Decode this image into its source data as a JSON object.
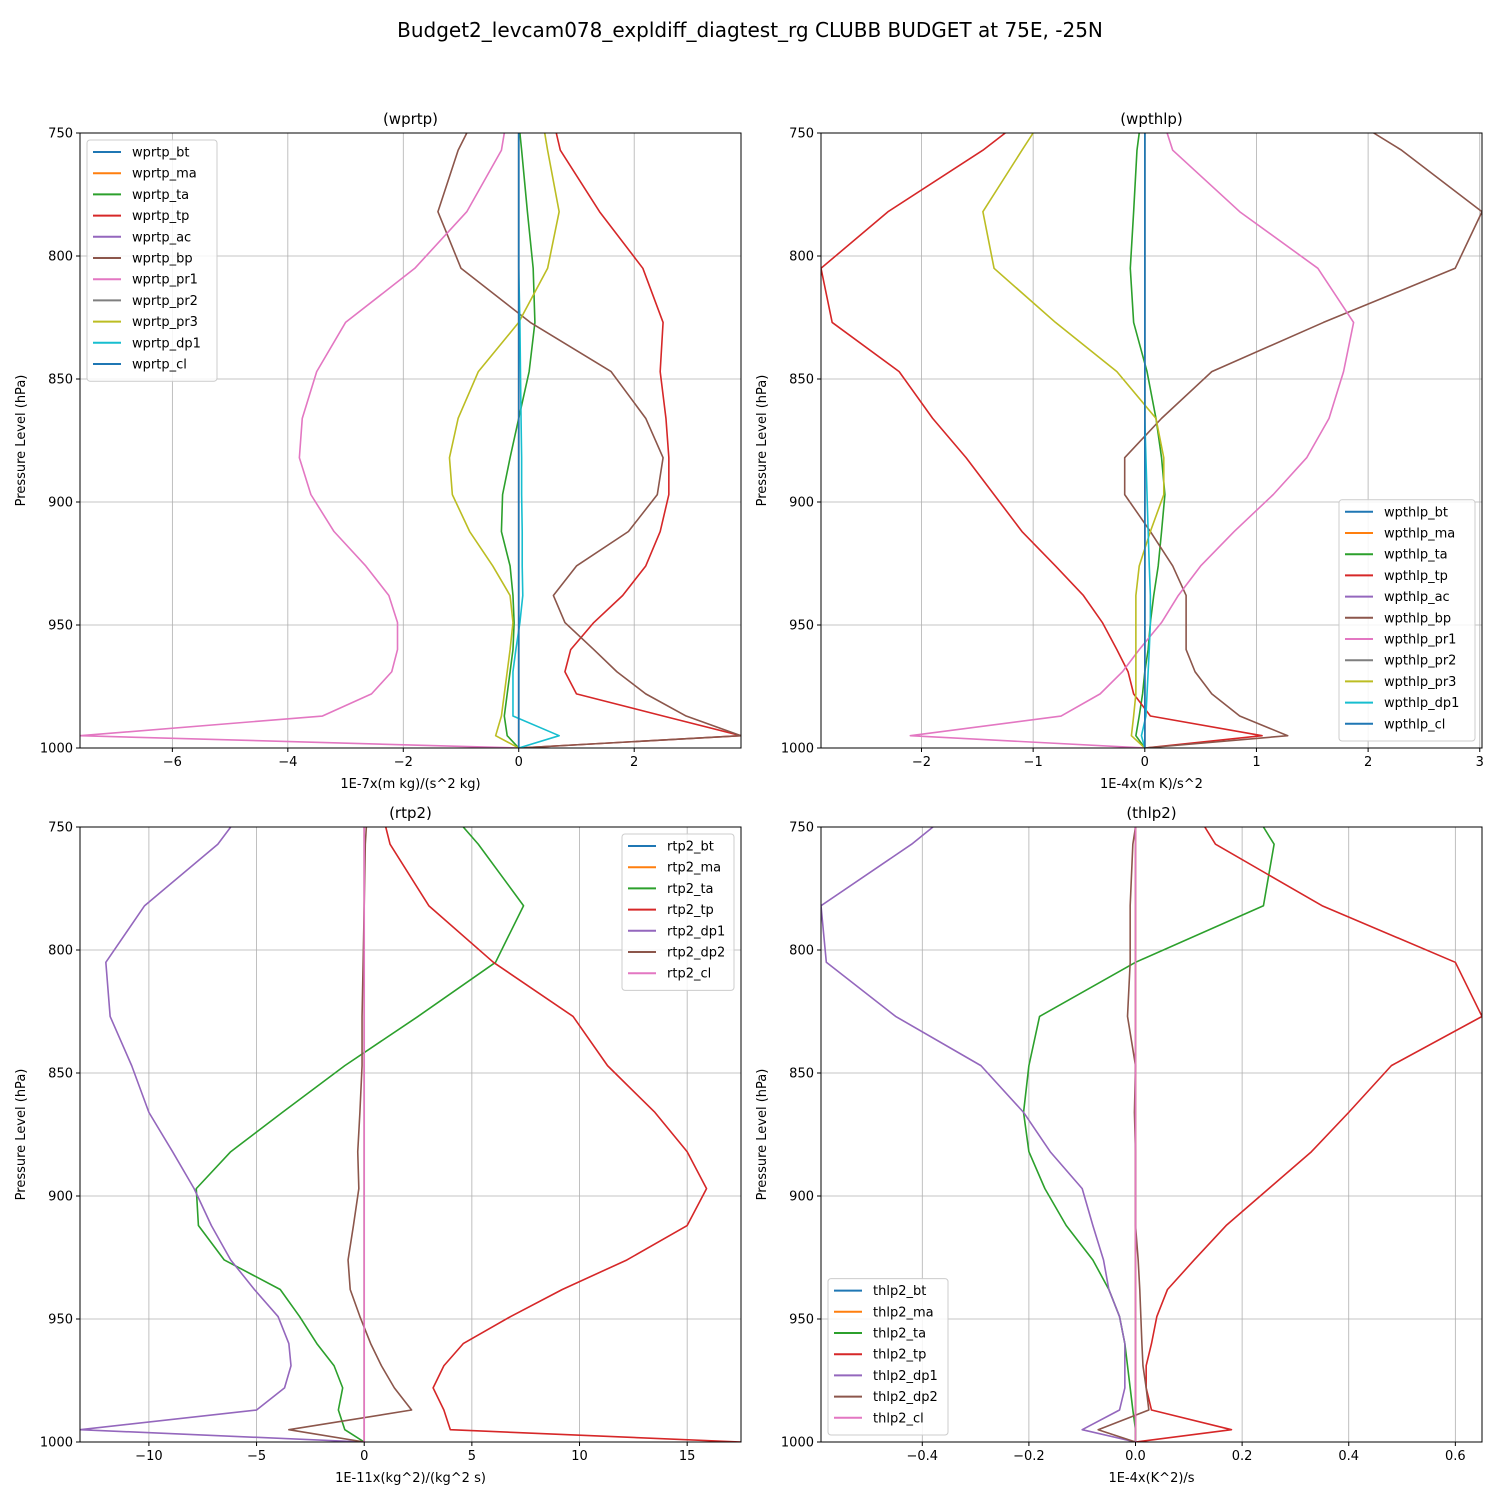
{
  "suptitle": "Budget2_levcam078_expldiff_diagtest_rg CLUBB BUDGET at 75E, -25N",
  "chart_data": [
    {
      "type": "line",
      "title": "(wprtp)",
      "xlabel": "1E-7x(m kg)/(s^2 kg)",
      "ylabel": "Pressure Level (hPa)",
      "xlim": [
        -7.6,
        3.85
      ],
      "ylim": [
        1000,
        750
      ],
      "xticks": [
        -6,
        -4,
        -2,
        0,
        2
      ],
      "yticks": [
        750,
        800,
        850,
        900,
        950,
        1000
      ],
      "grid": true,
      "legend_loc": "upper-left",
      "levels": [
        750,
        757,
        782,
        805,
        827,
        847,
        866,
        882,
        897,
        912,
        926,
        938,
        949,
        960,
        969,
        978,
        987,
        995,
        1000
      ],
      "series": [
        {
          "name": "wprtp_bt",
          "color": "#1f77b4",
          "values": [
            0,
            0,
            0,
            0,
            0,
            0,
            0,
            0,
            0,
            0,
            0,
            0,
            0,
            0,
            0,
            0,
            0,
            0,
            0
          ]
        },
        {
          "name": "wprtp_ma",
          "color": "#ff7f0e",
          "values": [
            0,
            0,
            0,
            0,
            0,
            0,
            0,
            0,
            0,
            0,
            0,
            0,
            0,
            0,
            0,
            0,
            0,
            0,
            0
          ]
        },
        {
          "name": "wprtp_ta",
          "color": "#2ca02c",
          "values": [
            0.02,
            0.05,
            0.15,
            0.25,
            0.28,
            0.18,
            0.0,
            -0.15,
            -0.28,
            -0.3,
            -0.15,
            -0.1,
            -0.08,
            -0.1,
            -0.15,
            -0.2,
            -0.25,
            -0.2,
            0.0
          ]
        },
        {
          "name": "wprtp_tp",
          "color": "#d62728",
          "values": [
            0.65,
            0.72,
            1.4,
            2.15,
            2.5,
            2.45,
            2.55,
            2.6,
            2.6,
            2.45,
            2.2,
            1.8,
            1.3,
            0.9,
            0.8,
            1.0,
            2.5,
            3.85,
            0.0
          ]
        },
        {
          "name": "wprtp_ac",
          "color": "#9467bd",
          "values": [
            0,
            0,
            0,
            0,
            0,
            0,
            0,
            0,
            0,
            0,
            0,
            0,
            0,
            0,
            0,
            0,
            0,
            0,
            0
          ]
        },
        {
          "name": "wprtp_bp",
          "color": "#8c564b",
          "values": [
            -0.9,
            -1.05,
            -1.4,
            -1.0,
            0.2,
            1.6,
            2.2,
            2.5,
            2.4,
            1.9,
            1.0,
            0.6,
            0.8,
            1.3,
            1.7,
            2.2,
            2.9,
            3.85,
            0.0
          ]
        },
        {
          "name": "wprtp_pr1",
          "color": "#e377c2",
          "values": [
            -0.25,
            -0.3,
            -0.9,
            -1.8,
            -3.0,
            -3.5,
            -3.75,
            -3.8,
            -3.6,
            -3.2,
            -2.65,
            -2.25,
            -2.1,
            -2.1,
            -2.2,
            -2.55,
            -3.4,
            -7.6,
            0.0
          ]
        },
        {
          "name": "wprtp_pr2",
          "color": "#7f7f7f",
          "values": [
            0,
            0,
            0,
            0,
            0,
            0,
            0,
            0,
            0,
            0,
            0,
            0,
            0,
            0,
            0,
            0,
            0,
            0,
            0
          ]
        },
        {
          "name": "wprtp_pr3",
          "color": "#bcbd22",
          "values": [
            0.45,
            0.5,
            0.7,
            0.5,
            0.0,
            -0.7,
            -1.05,
            -1.2,
            -1.15,
            -0.85,
            -0.45,
            -0.15,
            -0.1,
            -0.15,
            -0.2,
            -0.25,
            -0.3,
            -0.4,
            0.0
          ]
        },
        {
          "name": "wprtp_dp1",
          "color": "#17becf",
          "values": [
            0,
            0,
            0,
            0,
            0.02,
            0.03,
            0.04,
            0.05,
            0.05,
            0.06,
            0.06,
            0.07,
            0.02,
            -0.05,
            -0.1,
            -0.1,
            -0.1,
            0.7,
            0.0
          ]
        },
        {
          "name": "wprtp_cl",
          "color": "#1f77b4",
          "values": [
            0,
            0,
            0,
            0,
            0,
            0,
            0,
            0,
            0,
            0,
            0,
            0,
            0,
            0,
            0,
            0,
            0,
            0,
            0
          ]
        }
      ]
    },
    {
      "type": "line",
      "title": "(wpthlp)",
      "xlabel": "1E-4x(m K)/s^2",
      "ylabel": "Pressure Level (hPa)",
      "xlim": [
        -2.9,
        3.02
      ],
      "ylim": [
        1000,
        750
      ],
      "xticks": [
        -2,
        -1,
        0,
        1,
        2,
        3
      ],
      "yticks": [
        750,
        800,
        850,
        900,
        950,
        1000
      ],
      "grid": true,
      "legend_loc": "lower-right",
      "levels": [
        750,
        757,
        782,
        805,
        827,
        847,
        866,
        882,
        897,
        912,
        926,
        938,
        949,
        960,
        969,
        978,
        987,
        995,
        1000
      ],
      "series": [
        {
          "name": "wpthlp_bt",
          "color": "#1f77b4",
          "values": [
            0,
            0,
            0,
            0,
            0,
            0,
            0,
            0,
            0,
            0,
            0,
            0,
            0,
            0,
            0,
            0,
            0,
            0,
            0
          ]
        },
        {
          "name": "wpthlp_ma",
          "color": "#ff7f0e",
          "values": [
            0,
            0,
            0,
            0,
            0,
            0,
            0,
            0,
            0,
            0,
            0,
            0,
            0,
            0,
            0,
            0,
            0,
            0,
            0
          ]
        },
        {
          "name": "wpthlp_ta",
          "color": "#2ca02c",
          "values": [
            -0.05,
            -0.07,
            -0.1,
            -0.13,
            -0.1,
            0.02,
            0.1,
            0.15,
            0.18,
            0.15,
            0.12,
            0.08,
            0.05,
            0.03,
            0.0,
            -0.02,
            -0.05,
            -0.08,
            0.0
          ]
        },
        {
          "name": "wpthlp_tp",
          "color": "#d62728",
          "values": [
            -1.25,
            -1.45,
            -2.3,
            -2.9,
            -2.8,
            -2.2,
            -1.9,
            -1.6,
            -1.35,
            -1.1,
            -0.8,
            -0.55,
            -0.38,
            -0.25,
            -0.15,
            -0.1,
            0.05,
            1.05,
            0.0
          ]
        },
        {
          "name": "wpthlp_ac",
          "color": "#9467bd",
          "values": [
            0,
            0,
            0,
            0,
            0,
            0,
            0,
            0,
            0,
            0,
            0,
            0,
            0,
            0,
            0,
            0,
            0,
            0,
            0
          ]
        },
        {
          "name": "wpthlp_bp",
          "color": "#8c564b",
          "values": [
            2.05,
            2.3,
            3.02,
            2.78,
            1.6,
            0.6,
            0.15,
            -0.18,
            -0.18,
            0.05,
            0.25,
            0.37,
            0.37,
            0.37,
            0.45,
            0.6,
            0.85,
            1.28,
            0.0
          ]
        },
        {
          "name": "wpthlp_pr1",
          "color": "#e377c2",
          "values": [
            0.2,
            0.25,
            0.85,
            1.55,
            1.87,
            1.78,
            1.65,
            1.45,
            1.15,
            0.8,
            0.5,
            0.3,
            0.15,
            -0.05,
            -0.2,
            -0.4,
            -0.75,
            -2.1,
            0.0
          ]
        },
        {
          "name": "wpthlp_pr2",
          "color": "#7f7f7f",
          "values": [
            0,
            0,
            0,
            0,
            0,
            0,
            0,
            0,
            0,
            0,
            0,
            0,
            0,
            0,
            0,
            0,
            0,
            0,
            0
          ]
        },
        {
          "name": "wpthlp_pr3",
          "color": "#bcbd22",
          "values": [
            -1.0,
            -1.1,
            -1.45,
            -1.35,
            -0.8,
            -0.25,
            0.1,
            0.17,
            0.17,
            0.05,
            -0.05,
            -0.08,
            -0.08,
            -0.08,
            -0.08,
            -0.08,
            -0.1,
            -0.12,
            0.0
          ]
        },
        {
          "name": "wpthlp_dp1",
          "color": "#17becf",
          "values": [
            0,
            0,
            0,
            0,
            0,
            0,
            0,
            0.01,
            0.02,
            0.03,
            0.04,
            0.05,
            0.05,
            0.04,
            0.03,
            0.02,
            0.01,
            -0.03,
            0.0
          ]
        },
        {
          "name": "wpthlp_cl",
          "color": "#1f77b4",
          "values": [
            0,
            0,
            0,
            0,
            0,
            0,
            0,
            0,
            0,
            0,
            0,
            0,
            0,
            0,
            0,
            0,
            0,
            0,
            0
          ]
        }
      ]
    },
    {
      "type": "line",
      "title": "(rtp2)",
      "xlabel": "1E-11x(kg^2)/(kg^2 s)",
      "ylabel": "Pressure Level (hPa)",
      "xlim": [
        -13.2,
        17.5
      ],
      "ylim": [
        1000,
        750
      ],
      "xticks": [
        -10,
        -5,
        0,
        5,
        10,
        15
      ],
      "yticks": [
        750,
        800,
        850,
        900,
        950,
        1000
      ],
      "grid": true,
      "legend_loc": "upper-right",
      "levels": [
        750,
        757,
        782,
        805,
        827,
        847,
        866,
        882,
        897,
        912,
        926,
        938,
        949,
        960,
        969,
        978,
        987,
        995,
        1000
      ],
      "series": [
        {
          "name": "rtp2_bt",
          "color": "#1f77b4",
          "values": [
            0,
            0,
            0,
            0,
            0,
            0,
            0,
            0,
            0,
            0,
            0,
            0,
            0,
            0,
            0,
            0,
            0,
            0,
            0
          ]
        },
        {
          "name": "rtp2_ma",
          "color": "#ff7f0e",
          "values": [
            0,
            0,
            0,
            0,
            0,
            0,
            0,
            0,
            0,
            0,
            0,
            0,
            0,
            0,
            0,
            0,
            0,
            0,
            0
          ]
        },
        {
          "name": "rtp2_ta",
          "color": "#2ca02c",
          "values": [
            4.6,
            5.3,
            7.4,
            6.1,
            2.5,
            -0.9,
            -3.8,
            -6.2,
            -7.8,
            -7.7,
            -6.5,
            -3.9,
            -3.0,
            -2.2,
            -1.4,
            -1.0,
            -1.2,
            -0.9,
            0.0
          ]
        },
        {
          "name": "rtp2_tp",
          "color": "#d62728",
          "values": [
            1.0,
            1.2,
            3.0,
            6.0,
            9.7,
            11.3,
            13.5,
            15.0,
            15.9,
            15.0,
            12.2,
            9.2,
            6.8,
            4.6,
            3.7,
            3.2,
            3.7,
            4.0,
            17.5
          ]
        },
        {
          "name": "rtp2_dp1",
          "color": "#9467bd",
          "values": [
            -6.2,
            -6.8,
            -10.2,
            -12.0,
            -11.8,
            -10.8,
            -10.0,
            -8.9,
            -7.9,
            -7.1,
            -6.2,
            -5.1,
            -4.0,
            -3.5,
            -3.4,
            -3.7,
            -5.0,
            -13.2,
            0.0
          ]
        },
        {
          "name": "rtp2_dp2",
          "color": "#8c564b",
          "values": [
            0.1,
            0.05,
            0.0,
            -0.05,
            -0.1,
            -0.1,
            -0.2,
            -0.3,
            -0.25,
            -0.5,
            -0.75,
            -0.65,
            -0.2,
            0.3,
            0.8,
            1.4,
            2.2,
            -3.5,
            0.0
          ]
        },
        {
          "name": "rtp2_cl",
          "color": "#e377c2",
          "values": [
            0,
            0,
            0,
            0,
            0,
            0,
            0,
            0,
            0,
            0,
            0,
            0,
            0,
            0,
            0,
            0,
            0,
            0,
            0
          ]
        }
      ]
    },
    {
      "type": "line",
      "title": "(thlp2)",
      "xlabel": "1E-4x(K^2)/s",
      "ylabel": "Pressure Level (hPa)",
      "xlim": [
        -0.59,
        0.65
      ],
      "ylim": [
        1000,
        750
      ],
      "xticks": [
        -0.4,
        -0.2,
        0.0,
        0.2,
        0.4,
        0.6
      ],
      "yticks": [
        750,
        800,
        850,
        900,
        950,
        1000
      ],
      "grid": true,
      "legend_loc": "lower-left",
      "levels": [
        750,
        757,
        782,
        805,
        827,
        847,
        866,
        882,
        897,
        912,
        926,
        938,
        949,
        960,
        969,
        978,
        987,
        995,
        1000
      ],
      "series": [
        {
          "name": "thlp2_bt",
          "color": "#1f77b4",
          "values": [
            0,
            0,
            0,
            0,
            0,
            0,
            0,
            0,
            0,
            0,
            0,
            0,
            0,
            0,
            0,
            0,
            0,
            0,
            0
          ]
        },
        {
          "name": "thlp2_ma",
          "color": "#ff7f0e",
          "values": [
            0,
            0,
            0,
            0,
            0,
            0,
            0,
            0,
            0,
            0,
            0,
            0,
            0,
            0,
            0,
            0,
            0,
            0,
            0
          ]
        },
        {
          "name": "thlp2_ta",
          "color": "#2ca02c",
          "values": [
            0.24,
            0.26,
            0.24,
            0.0,
            -0.18,
            -0.2,
            -0.21,
            -0.2,
            -0.17,
            -0.13,
            -0.08,
            -0.05,
            -0.03,
            -0.02,
            -0.015,
            -0.01,
            -0.005,
            0.0,
            0.0
          ]
        },
        {
          "name": "thlp2_tp",
          "color": "#d62728",
          "values": [
            0.13,
            0.15,
            0.35,
            0.6,
            0.65,
            0.48,
            0.4,
            0.33,
            0.25,
            0.17,
            0.11,
            0.06,
            0.04,
            0.03,
            0.02,
            0.02,
            0.03,
            0.18,
            0.0
          ]
        },
        {
          "name": "thlp2_dp1",
          "color": "#9467bd",
          "values": [
            -0.38,
            -0.42,
            -0.59,
            -0.58,
            -0.45,
            -0.29,
            -0.21,
            -0.16,
            -0.1,
            -0.08,
            -0.06,
            -0.05,
            -0.03,
            -0.02,
            -0.02,
            -0.02,
            -0.03,
            -0.1,
            0.0
          ]
        },
        {
          "name": "thlp2_dp2",
          "color": "#8c564b",
          "values": [
            0.0,
            -0.005,
            -0.01,
            -0.01,
            -0.015,
            0.0,
            -0.002,
            0.0,
            0.0,
            0.0,
            0.005,
            0.008,
            0.01,
            0.012,
            0.014,
            0.02,
            0.025,
            -0.07,
            0.0
          ]
        },
        {
          "name": "thlp2_cl",
          "color": "#e377c2",
          "values": [
            0,
            0,
            0,
            0,
            0,
            0,
            0,
            0,
            0,
            0,
            0,
            0,
            0,
            0,
            0,
            0,
            0,
            0,
            0
          ]
        }
      ]
    }
  ]
}
